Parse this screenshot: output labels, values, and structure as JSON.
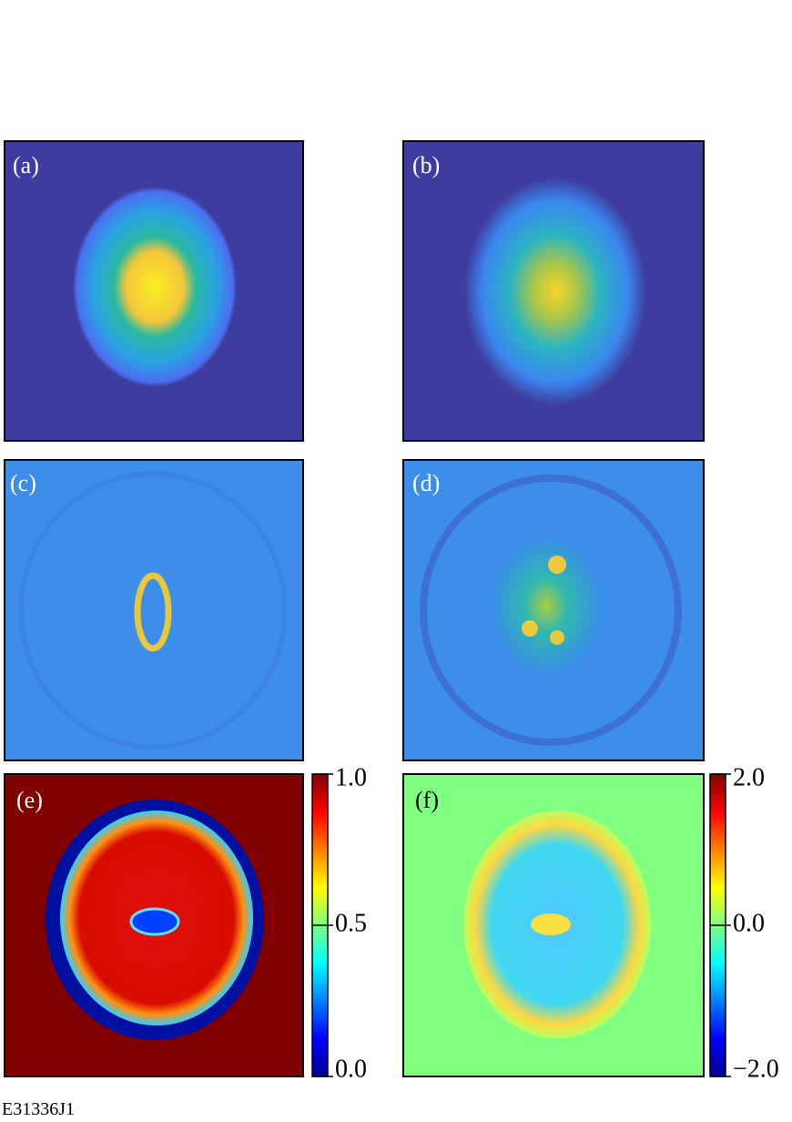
{
  "panels": [
    {
      "label": "(a)"
    },
    {
      "label": "(b)"
    },
    {
      "label": "(c)"
    },
    {
      "label": "(d)"
    },
    {
      "label": "(e)"
    },
    {
      "label": "(f)"
    }
  ],
  "colorbars": [
    {
      "panel": "(e)",
      "lim": [
        0,
        1
      ],
      "ticks": [
        {
          "value": 0,
          "label": "0.0"
        },
        {
          "value": 0.5,
          "label": "0.5"
        },
        {
          "value": 1,
          "label": "1.0"
        }
      ]
    },
    {
      "panel": "(f)",
      "lim": [
        -2,
        2
      ],
      "ticks": [
        {
          "value": -2,
          "label": "−2.0"
        },
        {
          "value": 0,
          "label": "0.0"
        },
        {
          "value": 2,
          "label": "2.0"
        }
      ]
    }
  ],
  "footer": "E31336J1"
}
